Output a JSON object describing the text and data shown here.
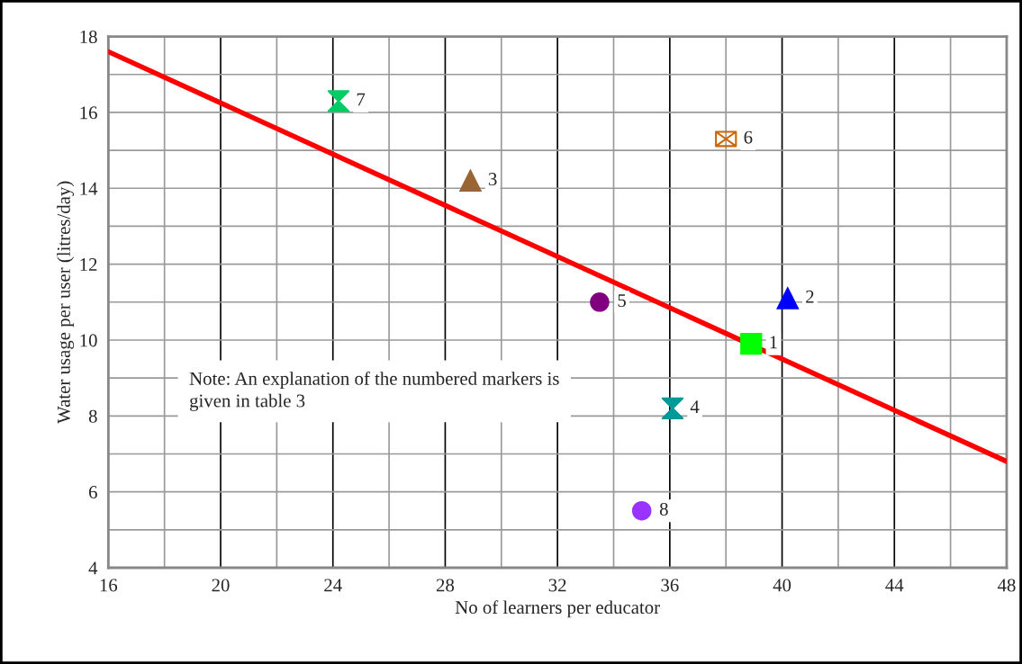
{
  "chart_data": {
    "type": "scatter",
    "xlabel": "No of learners per educator",
    "ylabel": "Water usage per user (litres/day)",
    "xlim": [
      16,
      48
    ],
    "xticks": [
      16,
      20,
      24,
      28,
      32,
      36,
      40,
      44,
      48
    ],
    "ylim": [
      4,
      18
    ],
    "yticks": [
      4,
      6,
      8,
      10,
      12,
      14,
      16,
      18
    ],
    "grid": true,
    "legend": false,
    "series": [
      {
        "name": "1",
        "color": "#00ff00",
        "marker": "square",
        "x": [
          38.9
        ],
        "values": [
          9.9
        ]
      },
      {
        "name": "2",
        "color": "#0000ff",
        "marker": "triangle",
        "x": [
          40.2
        ],
        "values": [
          11.1
        ]
      },
      {
        "name": "3",
        "color": "#996633",
        "marker": "triangle",
        "x": [
          28.9
        ],
        "values": [
          14.2
        ]
      },
      {
        "name": "4",
        "color": "#009999",
        "marker": "diamond",
        "x": [
          36.1
        ],
        "values": [
          8.2
        ]
      },
      {
        "name": "5",
        "color": "#800080",
        "marker": "circle",
        "x": [
          33.5
        ],
        "values": [
          11.0
        ]
      },
      {
        "name": "6",
        "color": "#cc6600",
        "marker": "cross",
        "x": [
          38.0
        ],
        "values": [
          15.3
        ]
      },
      {
        "name": "7",
        "color": "#00cc66",
        "marker": "diamond",
        "x": [
          24.2
        ],
        "values": [
          16.3
        ]
      },
      {
        "name": "8",
        "color": "#9933ff",
        "marker": "circle",
        "x": [
          35.0
        ],
        "values": [
          5.5
        ]
      },
      {
        "type": "line",
        "color": "#ff0000",
        "x": [
          16,
          48
        ],
        "values": [
          17.6,
          6.8
        ]
      }
    ],
    "annotations": [
      "Note: An explanation of the numbered markers is given in table 3"
    ]
  }
}
